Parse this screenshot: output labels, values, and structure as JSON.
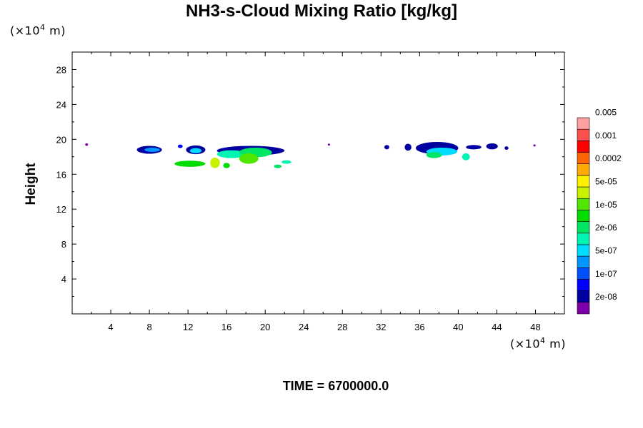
{
  "chart_data": {
    "type": "heatmap",
    "title": "NH3-s-Cloud Mixing Ratio [kg/kg]",
    "ylabel": "Height",
    "xlabel": "",
    "unit_y": {
      "prefix": "(×10",
      "exp": "4",
      "suffix": " m)"
    },
    "unit_x": {
      "prefix": "(×10",
      "exp": "4",
      "suffix": " m)"
    },
    "footer": "TIME = 6700000.0",
    "xlim": [
      0,
      51
    ],
    "ylim": [
      0,
      30
    ],
    "x_ticks": [
      "4",
      "8",
      "12",
      "16",
      "20",
      "24",
      "28",
      "32",
      "36",
      "40",
      "44",
      "48"
    ],
    "x_tick_values": [
      4,
      8,
      12,
      16,
      20,
      24,
      28,
      32,
      36,
      40,
      44,
      48
    ],
    "y_ticks": [
      "4",
      "8",
      "12",
      "16",
      "20",
      "24",
      "28"
    ],
    "y_tick_values": [
      4,
      8,
      12,
      16,
      20,
      24,
      28
    ],
    "colorbar": {
      "colors": [
        "#7f00a8",
        "#0000a0",
        "#0000ff",
        "#0050ff",
        "#0096ff",
        "#00dcff",
        "#00f5b4",
        "#00e664",
        "#00dc00",
        "#50e600",
        "#c8f000",
        "#fff000",
        "#ffaa00",
        "#ff6400",
        "#ff0000",
        "#ff5050",
        "#ffa0a0"
      ],
      "labels": [
        "2e-08",
        "1e-07",
        "5e-07",
        "2e-06",
        "1e-05",
        "5e-05",
        "0.0002",
        "0.001",
        "0.005"
      ]
    },
    "cloud_regions": [
      {
        "x": 1.5,
        "y": 19.4,
        "rx": 0.15,
        "ry": 0.15,
        "level": 0
      },
      {
        "x": 8.0,
        "y": 18.8,
        "rx": 1.3,
        "ry": 0.45,
        "level": 1
      },
      {
        "x": 8.3,
        "y": 18.8,
        "rx": 0.8,
        "ry": 0.25,
        "level": 4
      },
      {
        "x": 11.2,
        "y": 19.2,
        "rx": 0.25,
        "ry": 0.2,
        "level": 2
      },
      {
        "x": 12.8,
        "y": 18.8,
        "rx": 1.0,
        "ry": 0.5,
        "level": 1
      },
      {
        "x": 12.8,
        "y": 18.7,
        "rx": 0.6,
        "ry": 0.3,
        "level": 5
      },
      {
        "x": 18.5,
        "y": 18.7,
        "rx": 3.5,
        "ry": 0.55,
        "level": 1
      },
      {
        "x": 16.5,
        "y": 18.3,
        "rx": 1.5,
        "ry": 0.45,
        "level": 6
      },
      {
        "x": 19.0,
        "y": 18.5,
        "rx": 1.7,
        "ry": 0.55,
        "level": 7
      },
      {
        "x": 18.3,
        "y": 17.8,
        "rx": 1.0,
        "ry": 0.6,
        "level": 9
      },
      {
        "x": 12.2,
        "y": 17.2,
        "rx": 1.6,
        "ry": 0.35,
        "level": 8
      },
      {
        "x": 14.8,
        "y": 17.3,
        "rx": 0.5,
        "ry": 0.6,
        "level": 10
      },
      {
        "x": 16.0,
        "y": 17.0,
        "rx": 0.35,
        "ry": 0.3,
        "level": 8
      },
      {
        "x": 21.3,
        "y": 16.9,
        "rx": 0.4,
        "ry": 0.2,
        "level": 7
      },
      {
        "x": 22.2,
        "y": 17.4,
        "rx": 0.5,
        "ry": 0.2,
        "level": 6
      },
      {
        "x": 26.6,
        "y": 19.4,
        "rx": 0.12,
        "ry": 0.12,
        "level": 0
      },
      {
        "x": 32.6,
        "y": 19.1,
        "rx": 0.25,
        "ry": 0.25,
        "level": 1
      },
      {
        "x": 34.8,
        "y": 19.1,
        "rx": 0.35,
        "ry": 0.4,
        "level": 1
      },
      {
        "x": 37.8,
        "y": 19.0,
        "rx": 2.2,
        "ry": 0.7,
        "level": 1
      },
      {
        "x": 38.3,
        "y": 18.6,
        "rx": 1.6,
        "ry": 0.45,
        "level": 5
      },
      {
        "x": 37.5,
        "y": 18.2,
        "rx": 0.8,
        "ry": 0.35,
        "level": 7
      },
      {
        "x": 40.8,
        "y": 18.0,
        "rx": 0.4,
        "ry": 0.4,
        "level": 6
      },
      {
        "x": 41.6,
        "y": 19.1,
        "rx": 0.8,
        "ry": 0.25,
        "level": 1
      },
      {
        "x": 43.5,
        "y": 19.2,
        "rx": 0.6,
        "ry": 0.35,
        "level": 1
      },
      {
        "x": 45.0,
        "y": 19.0,
        "rx": 0.2,
        "ry": 0.2,
        "level": 1
      },
      {
        "x": 47.9,
        "y": 19.3,
        "rx": 0.12,
        "ry": 0.12,
        "level": 0
      }
    ]
  }
}
